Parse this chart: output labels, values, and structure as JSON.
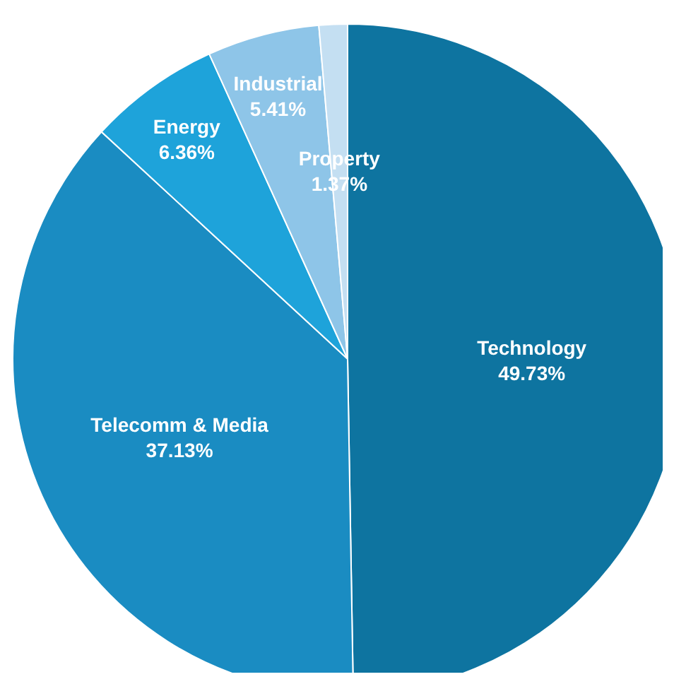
{
  "chart_data": {
    "type": "pie",
    "categories": [
      "Technology",
      "Telecomm & Media",
      "Energy",
      "Industrial",
      "Property"
    ],
    "values": [
      49.73,
      37.13,
      6.36,
      5.41,
      1.37
    ],
    "value_labels": [
      "49.73%",
      "37.13%",
      "6.36%",
      "5.41%",
      "1.37%"
    ],
    "colors": [
      "#0e74a0",
      "#1a8cc2",
      "#1ea3da",
      "#8ec5e8",
      "#c4dff2"
    ]
  }
}
